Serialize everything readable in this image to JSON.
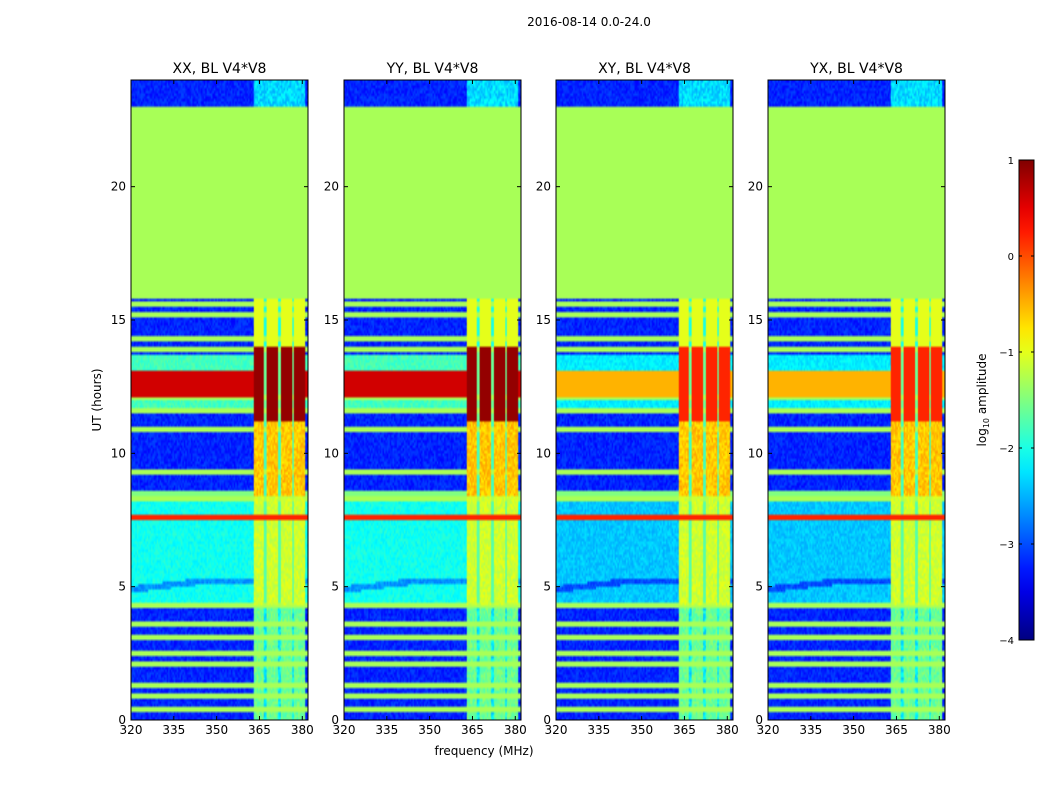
{
  "figure": {
    "suptitle": "2016-08-14 0.0-24.0",
    "xlabel": "frequency (MHz)",
    "ylabel": "UT (hours)"
  },
  "chart_data": {
    "type": "heatmap",
    "suptitle": "2016-08-14 0.0-24.0",
    "xlabel": "frequency (MHz)",
    "ylabel": "UT (hours)",
    "xlim": [
      320,
      382
    ],
    "ylim": [
      0,
      24
    ],
    "xticks": [
      320,
      335,
      350,
      365,
      380
    ],
    "yticks": [
      0,
      5,
      10,
      15,
      20
    ],
    "panels": [
      {
        "title": "XX, BL V4*V8",
        "pol": "XX"
      },
      {
        "title": "YY, BL V4*V8",
        "pol": "YY"
      },
      {
        "title": "XY, BL V4*V8",
        "pol": "XY"
      },
      {
        "title": "YX, BL V4*V8",
        "pol": "YX"
      }
    ],
    "colorbar": {
      "label": "log10 amplitude",
      "label_parts": [
        "log",
        "10",
        " amplitude"
      ],
      "range": [
        -4,
        1
      ],
      "ticks": [
        -4,
        -3,
        -2,
        -1,
        0,
        1
      ],
      "tick_labels": [
        "−4",
        "−3",
        "−2",
        "−1",
        "0",
        "1"
      ],
      "colormap": "jet"
    },
    "flagged_ut_range": [
      15.8,
      23
    ],
    "flagged_value": -1.3,
    "rfi_band_mhz": [
      363,
      381
    ],
    "rfi_channels_mhz": [
      364.5,
      369.5,
      374.5,
      379
    ]
  }
}
